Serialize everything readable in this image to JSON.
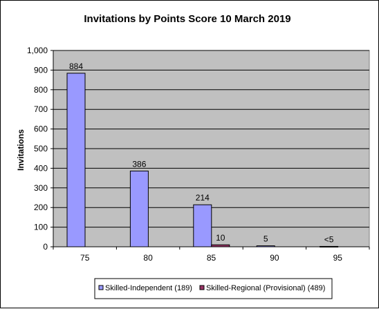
{
  "chart_data": {
    "type": "bar",
    "title": "Invitations by Points Score 10 March 2019",
    "xlabel": "",
    "ylabel": "Invitations",
    "ylim": [
      0,
      1000
    ],
    "yticks": [
      "0",
      "100",
      "200",
      "300",
      "400",
      "500",
      "600",
      "700",
      "800",
      "900",
      "1,000"
    ],
    "ytick_values": [
      0,
      100,
      200,
      300,
      400,
      500,
      600,
      700,
      800,
      900,
      1000
    ],
    "categories": [
      "75",
      "80",
      "85",
      "90",
      "95"
    ],
    "series": [
      {
        "name": "Skilled-Independent (189)",
        "color": "#9999ff",
        "values": [
          884,
          386,
          214,
          5,
          2
        ],
        "labels": [
          "884",
          "386",
          "214",
          "5",
          "<5"
        ]
      },
      {
        "name": "Skilled-Regional (Provisional) (489)",
        "color": "#993366",
        "values": [
          0,
          0,
          10,
          0,
          0
        ],
        "labels": [
          "",
          "",
          "10",
          "",
          ""
        ]
      }
    ],
    "plot_background": "#c0c0c0",
    "grid": true,
    "legend_position": "bottom"
  }
}
